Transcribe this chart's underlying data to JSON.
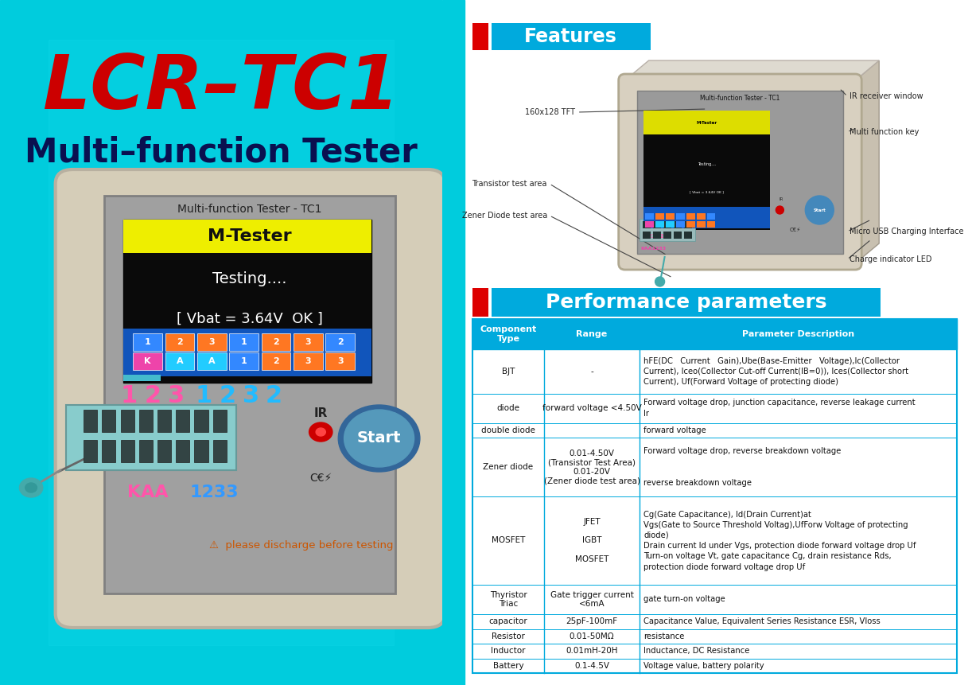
{
  "bg_left_color": "#00C8D4",
  "bg_right_color": "#FFFFFF",
  "title_text": "LCR–TC1",
  "title_color": "#CC0000",
  "subtitle_text": "Multi–function Tester",
  "subtitle_color": "#1A1A2E",
  "features_label": "Features",
  "features_bg": "#00AADD",
  "features_square": "#DD0000",
  "perf_label": "Performance parameters",
  "perf_bg": "#00AADD",
  "perf_square": "#DD0000",
  "table_header_bg": "#00AADD",
  "table_header_color": "#FFFFFF",
  "table_border_color": "#00AADD",
  "device_labels": {
    "tft": "160x128 TFT",
    "ir": "IR receiver window",
    "multikey": "Multi function key",
    "transistor": "Transistor test area",
    "zener": "Zener Diode test area",
    "usb": "Micro USB Charging Interface",
    "led": "Charge indicator LED"
  },
  "screen_title": "Multi-function Tester - TC1",
  "screen_yellow_text": "M-Tester",
  "screen_line1": "Testing....",
  "screen_line2": "[ Vbat = 3.64V  OK ]",
  "left_bg": "#00C4CC",
  "cyan_strip": "#00C4CC"
}
